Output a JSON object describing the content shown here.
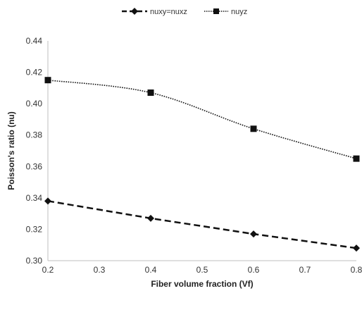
{
  "chart_data": {
    "type": "line",
    "xlabel": "Fiber volume fraction (Vf)",
    "ylabel": "Poisson's ratio (nu)",
    "xlim": [
      0.2,
      0.8
    ],
    "ylim": [
      0.3,
      0.44
    ],
    "x_ticks": [
      "0.2",
      "0.3",
      "0.4",
      "0.5",
      "0.6",
      "0.7",
      "0.8"
    ],
    "y_ticks": [
      "0.30",
      "0.32",
      "0.34",
      "0.36",
      "0.38",
      "0.40",
      "0.42",
      "0.44"
    ],
    "grid": false,
    "legend_position": "top",
    "series": [
      {
        "name": "nuxy=nuxz",
        "x": [
          0.2,
          0.4,
          0.6,
          0.8
        ],
        "y": [
          0.338,
          0.327,
          0.317,
          0.308
        ],
        "marker": "diamond",
        "line_style": "dashed",
        "color": "#111111"
      },
      {
        "name": "nuyz",
        "x": [
          0.2,
          0.4,
          0.6,
          0.8
        ],
        "y": [
          0.415,
          0.407,
          0.384,
          0.365
        ],
        "marker": "square",
        "line_style": "dotted",
        "color": "#111111"
      }
    ]
  }
}
